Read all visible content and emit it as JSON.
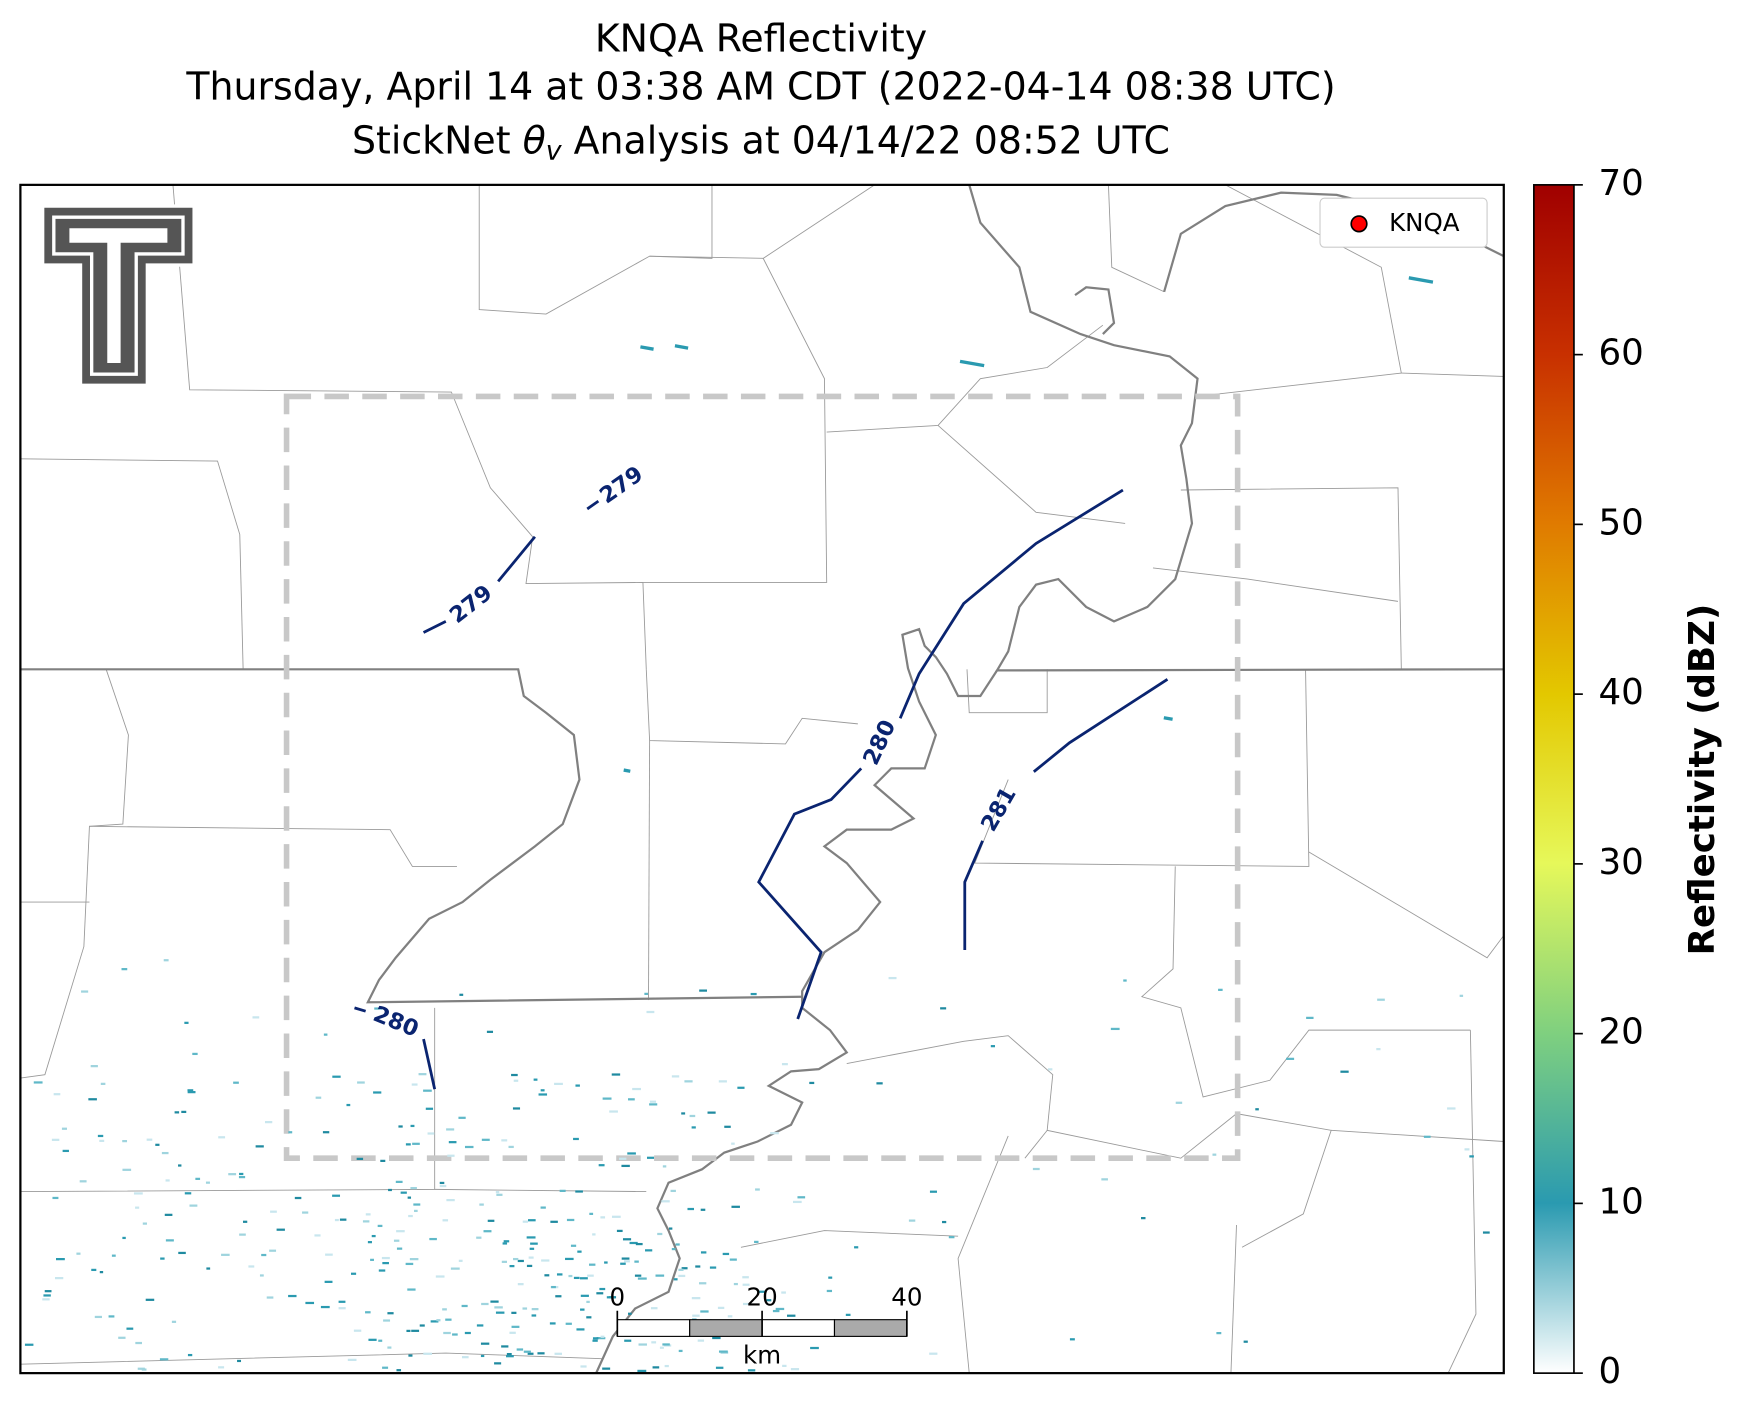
{
  "header": {
    "title": "KNQA Reflectivity",
    "subtitle": "Thursday, April 14 at 03:38 AM CDT (2022-04-14 08:38 UTC)",
    "analysis": {
      "prefix": "StickNet ",
      "symbol": "θ",
      "subscript": "v",
      "suffix": " Analysis at 04/14/22 08:52 UTC"
    }
  },
  "legend": {
    "label": "KNQA",
    "color": "#ff0000"
  },
  "contour_labels": [
    279,
    279,
    280,
    280,
    281
  ],
  "colorbar": {
    "label": "Reflectivity (dBZ)",
    "lim": [
      0,
      70
    ],
    "ticks": [
      0,
      10,
      20,
      30,
      40,
      50,
      60,
      70
    ]
  },
  "scale_bar": {
    "lim": [
      0,
      40
    ],
    "ticks": [
      0,
      20,
      40
    ],
    "unit": "km"
  }
}
